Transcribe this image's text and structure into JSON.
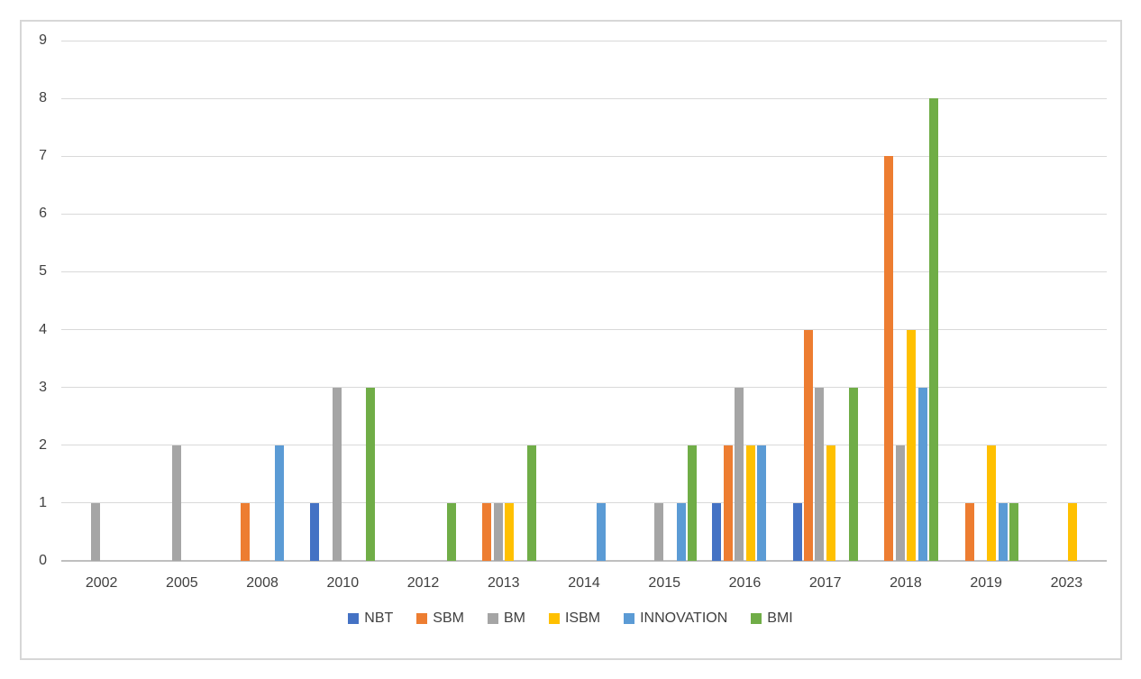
{
  "chart_data": {
    "type": "bar",
    "title": "",
    "xlabel": "",
    "ylabel": "",
    "categories": [
      "2002",
      "2005",
      "2008",
      "2010",
      "2012",
      "2013",
      "2014",
      "2015",
      "2016",
      "2017",
      "2018",
      "2019",
      "2023"
    ],
    "series": [
      {
        "name": "NBT",
        "color": "#4472C4",
        "values": [
          0,
          0,
          0,
          1,
          0,
          0,
          0,
          0,
          1,
          1,
          0,
          0,
          0
        ]
      },
      {
        "name": "SBM",
        "color": "#ED7D31",
        "values": [
          0,
          0,
          1,
          0,
          0,
          1,
          0,
          0,
          2,
          4,
          7,
          1,
          0
        ]
      },
      {
        "name": "BM",
        "color": "#A5A5A5",
        "values": [
          1,
          2,
          0,
          3,
          0,
          1,
          0,
          1,
          3,
          3,
          2,
          0,
          0
        ]
      },
      {
        "name": "ISBM",
        "color": "#FFC000",
        "values": [
          0,
          0,
          0,
          0,
          0,
          1,
          0,
          0,
          2,
          2,
          4,
          2,
          1
        ]
      },
      {
        "name": "INNOVATION",
        "color": "#5B9BD5",
        "values": [
          0,
          0,
          2,
          0,
          0,
          0,
          1,
          1,
          2,
          0,
          3,
          1,
          0
        ]
      },
      {
        "name": "BMI",
        "color": "#70AD47",
        "values": [
          0,
          0,
          0,
          3,
          1,
          2,
          0,
          2,
          0,
          3,
          8,
          1,
          0
        ]
      }
    ],
    "ylim": [
      0,
      9
    ],
    "yticks": [
      0,
      1,
      2,
      3,
      4,
      5,
      6,
      7,
      8,
      9
    ],
    "grid": true,
    "gridline_color": "#D9D9D9",
    "axis_line_color": "#BFBFBF",
    "text_color": "#404040",
    "legend_position": "bottom"
  }
}
